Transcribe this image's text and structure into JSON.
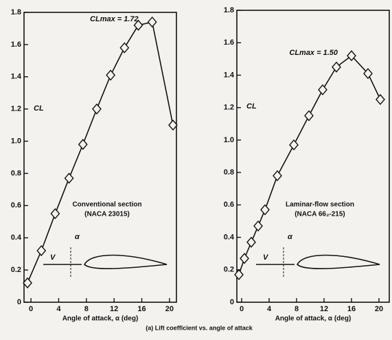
{
  "chart_data": [
    {
      "type": "line",
      "ylabel": "CL",
      "xlabel": "Angle of attack, α (deg)",
      "peak_label": "CLmax = 1.72",
      "section_label": "Conventional section",
      "section_code": "(NACA 23015)",
      "alpha_label": "α",
      "velocity_label": "V",
      "xlim": [
        -1,
        21
      ],
      "ylim": [
        0,
        1.8
      ],
      "xticks": [
        0,
        4,
        8,
        12,
        16,
        20
      ],
      "yticks": [
        0,
        0.2,
        0.4,
        0.6,
        0.8,
        {
          "value": 1.0,
          "label": "1.0"
        },
        1.2,
        1.4,
        1.6,
        1.8
      ],
      "series": [
        {
          "color": "#111111",
          "x": [
            -0.5,
            1.5,
            3.5,
            5.5,
            7.5,
            9.5,
            11.5,
            13.5,
            15.5,
            17.5,
            20.5
          ],
          "values": [
            0.12,
            0.32,
            0.55,
            0.77,
            0.98,
            1.2,
            1.41,
            1.58,
            1.72,
            1.74,
            1.1
          ]
        }
      ]
    },
    {
      "type": "line",
      "ylabel": "CL",
      "xlabel": "Angle of attack, α (deg)",
      "peak_label": "CLmax = 1.50",
      "section_label": "Laminar-flow section",
      "section_code": "(NACA 66₂-215)",
      "alpha_label": "α",
      "velocity_label": "V",
      "xlim": [
        -0.7,
        21.5
      ],
      "ylim": [
        0,
        1.8
      ],
      "xticks": [
        0,
        4,
        8,
        12,
        16,
        20
      ],
      "yticks": [
        0,
        0.2,
        0.4,
        0.6,
        0.8,
        {
          "value": 1.0,
          "label": "1.0"
        },
        1.2,
        1.4,
        1.6,
        1.8
      ],
      "series": [
        {
          "color": "#111111",
          "x": [
            -0.4,
            0.4,
            1.4,
            2.4,
            3.4,
            5.2,
            7.6,
            9.8,
            11.8,
            13.8,
            16,
            18.4,
            20.2
          ],
          "values": [
            0.17,
            0.27,
            0.37,
            0.47,
            0.57,
            0.78,
            0.97,
            1.15,
            1.31,
            1.45,
            1.52,
            1.41,
            1.25
          ]
        }
      ]
    }
  ],
  "caption": "(a) Lift coefficient vs. angle of attack"
}
